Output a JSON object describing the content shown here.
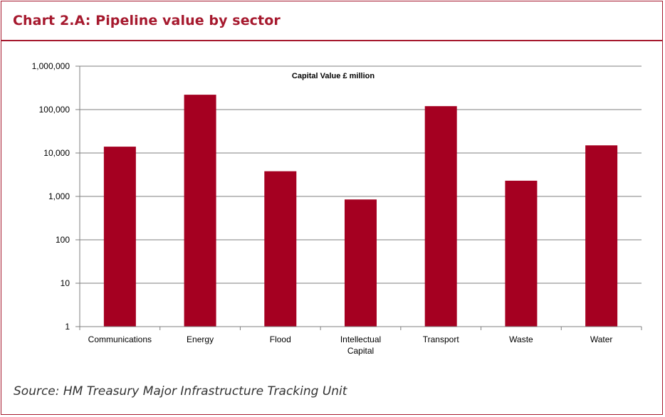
{
  "title": "Chart 2.A: Pipeline value by sector",
  "source": "Source: HM Treasury Major Infrastructure Tracking Unit",
  "colors": {
    "accent": "#a6192e",
    "bar": "#a50021",
    "grid": "#7f7f7f"
  },
  "chart_data": {
    "type": "bar",
    "title": "Capital Value £ million",
    "xlabel": "",
    "ylabel": "",
    "yscale": "log",
    "ylim": [
      1,
      1000000
    ],
    "grid": true,
    "y_tick_labels": [
      "1",
      "10",
      "100",
      "1,000",
      "10,000",
      "100,000",
      "1,000,000"
    ],
    "y_tick_values": [
      1,
      10,
      100,
      1000,
      10000,
      100000,
      1000000
    ],
    "categories": [
      "Communications",
      "Energy",
      "Flood",
      "Intellectual Capital",
      "Transport",
      "Waste",
      "Water"
    ],
    "category_lines": [
      [
        "Communications"
      ],
      [
        "Energy"
      ],
      [
        "Flood"
      ],
      [
        "Intellectual",
        "Capital"
      ],
      [
        "Transport"
      ],
      [
        "Waste"
      ],
      [
        "Water"
      ]
    ],
    "series": [
      {
        "values": [
          14000,
          220000,
          3800,
          850,
          120000,
          2300,
          15000
        ]
      }
    ]
  }
}
